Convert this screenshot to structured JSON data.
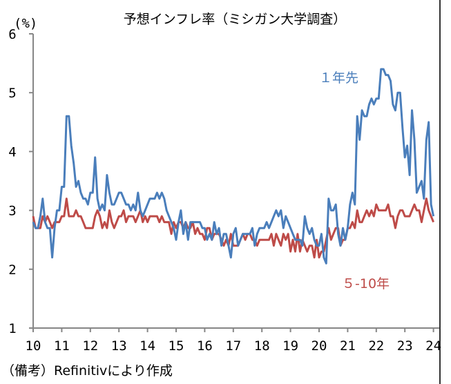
{
  "chart_data": {
    "type": "line",
    "title": "予想インフレ率（ミシガン大学調査）",
    "ylabel": "(%)",
    "xlabel": "",
    "ylim": [
      1,
      6
    ],
    "yticks": [
      "1",
      "2",
      "3",
      "4",
      "5",
      "6"
    ],
    "xticks": [
      "10",
      "11",
      "12",
      "13",
      "14",
      "15",
      "16",
      "17",
      "18",
      "19",
      "20",
      "21",
      "22",
      "23",
      "24"
    ],
    "x_start": "2010-01",
    "x_frequency": "monthly",
    "grid": false,
    "note": "（備考）Refinitivにより作成",
    "series": [
      {
        "name": "１年先",
        "color": "#4a7ebb",
        "values": [
          2.8,
          2.7,
          2.7,
          2.9,
          3.2,
          2.8,
          2.7,
          2.7,
          2.2,
          2.7,
          3.0,
          3.0,
          3.4,
          3.4,
          4.6,
          4.6,
          4.1,
          3.8,
          3.4,
          3.5,
          3.3,
          3.2,
          3.2,
          3.1,
          3.3,
          3.3,
          3.9,
          3.2,
          3.0,
          3.1,
          3.0,
          3.6,
          3.3,
          3.1,
          3.1,
          3.2,
          3.3,
          3.3,
          3.2,
          3.1,
          3.1,
          3.0,
          3.1,
          3.0,
          3.3,
          3.0,
          2.9,
          3.0,
          3.1,
          3.2,
          3.2,
          3.2,
          3.3,
          3.2,
          3.3,
          3.2,
          3.0,
          2.9,
          2.8,
          2.7,
          2.5,
          2.8,
          3.0,
          2.6,
          2.8,
          2.5,
          2.8,
          2.8,
          2.8,
          2.8,
          2.8,
          2.7,
          2.7,
          2.5,
          2.6,
          2.5,
          2.8,
          2.6,
          2.7,
          2.4,
          2.6,
          2.6,
          2.4,
          2.2,
          2.6,
          2.7,
          2.4,
          2.5,
          2.6,
          2.6,
          2.6,
          2.6,
          2.7,
          2.4,
          2.6,
          2.7,
          2.7,
          2.7,
          2.8,
          2.7,
          2.8,
          2.9,
          3.0,
          2.9,
          3.0,
          2.7,
          2.9,
          2.8,
          2.7,
          2.6,
          2.5,
          2.5,
          2.5,
          2.4,
          2.9,
          2.7,
          2.6,
          2.7,
          2.5,
          2.4,
          2.4,
          2.6,
          2.2,
          2.1,
          3.2,
          3.0,
          3.0,
          3.1,
          2.6,
          2.4,
          2.7,
          2.5,
          2.7,
          3.1,
          3.3,
          3.1,
          4.6,
          4.2,
          4.7,
          4.6,
          4.6,
          4.8,
          4.9,
          4.8,
          4.9,
          4.9,
          5.4,
          5.4,
          5.3,
          5.3,
          5.2,
          4.8,
          4.7,
          5.0,
          5.0,
          4.4,
          3.9,
          4.1,
          3.6,
          4.7,
          4.2,
          3.3,
          3.4,
          3.5,
          3.2,
          4.2,
          4.5,
          3.1,
          2.9
        ]
      },
      {
        "name": "５-10年",
        "color": "#be4b48",
        "values": [
          2.9,
          2.7,
          2.7,
          2.7,
          2.9,
          2.8,
          2.9,
          2.8,
          2.7,
          2.8,
          2.8,
          2.8,
          2.9,
          2.9,
          3.2,
          2.9,
          2.9,
          2.9,
          3.0,
          2.9,
          2.9,
          2.8,
          2.7,
          2.7,
          2.7,
          2.7,
          2.9,
          3.0,
          2.9,
          2.7,
          2.8,
          2.7,
          3.0,
          2.8,
          2.7,
          2.8,
          2.9,
          2.9,
          3.0,
          2.8,
          2.9,
          2.9,
          2.9,
          2.8,
          2.9,
          3.0,
          2.8,
          2.9,
          2.8,
          2.9,
          2.9,
          2.9,
          2.9,
          2.8,
          2.9,
          2.8,
          2.8,
          2.8,
          2.6,
          2.8,
          2.7,
          2.8,
          2.8,
          2.7,
          2.8,
          2.7,
          2.7,
          2.8,
          2.6,
          2.7,
          2.6,
          2.6,
          2.5,
          2.7,
          2.7,
          2.5,
          2.6,
          2.6,
          2.6,
          2.5,
          2.4,
          2.5,
          2.4,
          2.6,
          2.4,
          2.4,
          2.4,
          2.5,
          2.6,
          2.5,
          2.6,
          2.6,
          2.5,
          2.5,
          2.4,
          2.5,
          2.5,
          2.5,
          2.5,
          2.5,
          2.6,
          2.4,
          2.6,
          2.5,
          2.4,
          2.6,
          2.5,
          2.6,
          2.3,
          2.5,
          2.3,
          2.6,
          2.3,
          2.5,
          2.4,
          2.3,
          2.4,
          2.4,
          2.2,
          2.5,
          2.2,
          2.3,
          2.3,
          2.5,
          2.7,
          2.5,
          2.6,
          2.7,
          2.7,
          2.4,
          2.5,
          2.5,
          2.7,
          2.7,
          2.8,
          2.7,
          3.0,
          2.8,
          2.8,
          2.9,
          3.0,
          2.9,
          3.0,
          2.9,
          3.1,
          3.0,
          3.0,
          3.0,
          3.0,
          3.1,
          2.9,
          2.9,
          2.7,
          2.9,
          3.0,
          3.0,
          2.9,
          2.9,
          2.9,
          3.0,
          3.1,
          3.0,
          3.0,
          2.8,
          3.0,
          3.2,
          3.0,
          2.9,
          2.8
        ]
      }
    ]
  }
}
